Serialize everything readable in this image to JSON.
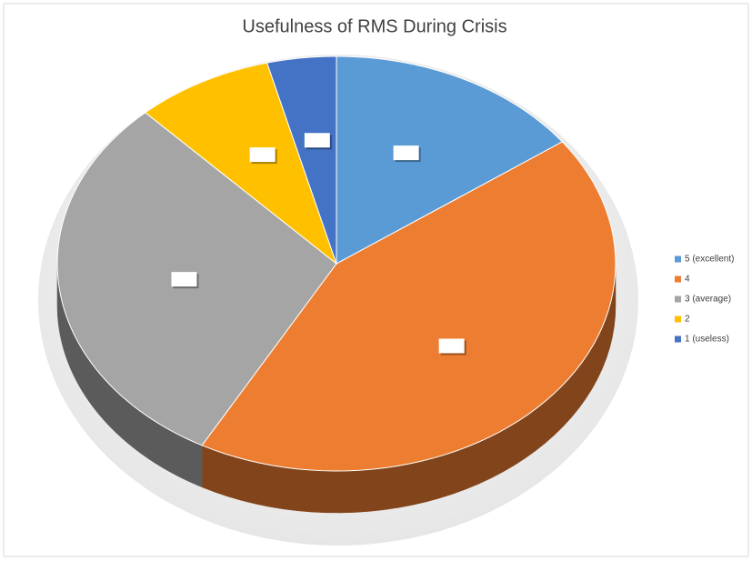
{
  "chart_data": {
    "type": "pie",
    "title": "Usefulness of RMS During Crisis",
    "categories": [
      "5 (excellent)",
      "4",
      "3 (average)",
      "2",
      "1 (useless)"
    ],
    "values": [
      15,
      43,
      30,
      8,
      4
    ],
    "colors": [
      "#5b9bd5",
      "#ed7d31",
      "#a5a5a5",
      "#ffc000",
      "#4472c4"
    ],
    "legend": "right"
  }
}
